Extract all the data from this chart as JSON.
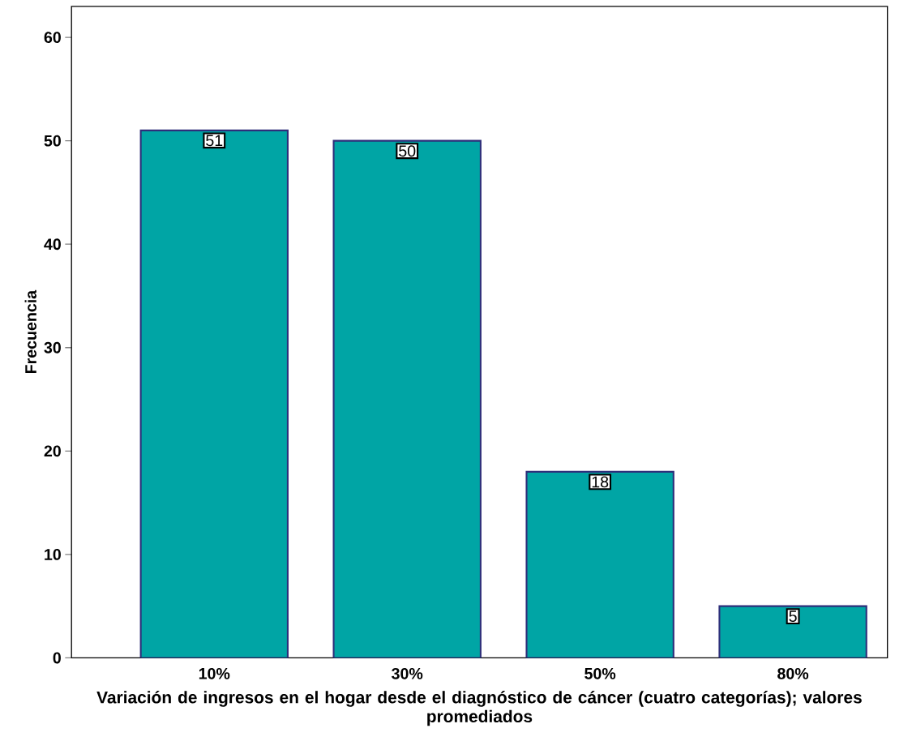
{
  "chart_data": {
    "type": "bar",
    "xlabel": "Variación de ingresos en el hogar desde el diagnóstico de cáncer (cuatro categorías); valores promediados",
    "ylabel": "Frecuencia",
    "categories": [
      "10%",
      "30%",
      "50%",
      "80%"
    ],
    "values": [
      51,
      50,
      18,
      5
    ],
    "color": "#00a5a5",
    "ylim": [
      0,
      63
    ],
    "yticks": [
      0,
      10,
      20,
      30,
      40,
      50,
      60
    ],
    "data_labels": true
  }
}
